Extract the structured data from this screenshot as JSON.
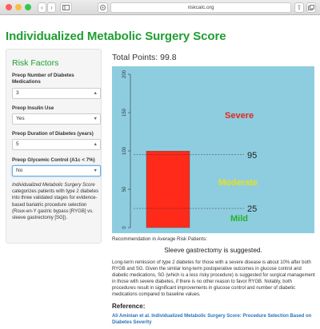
{
  "browser": {
    "url": "riskcalc.org",
    "colors": {
      "close": "#fc605c",
      "minimize": "#fdbc40",
      "zoom": "#34c84a"
    }
  },
  "page": {
    "title": "Individualized Metabolic Surgery Score",
    "accent_color": "#1f9e32"
  },
  "sidebar": {
    "heading": "Risk Factors",
    "fields": [
      {
        "label": "Preop Number of Diabetes Medications",
        "value": "3",
        "control": "numeric-stepper"
      },
      {
        "label": "Preop Insulin Use",
        "value": "Yes",
        "control": "select"
      },
      {
        "label": "Preop Duration of Diabetes (years)",
        "value": "5",
        "control": "numeric-stepper"
      },
      {
        "label": "Preop Glycemic Control (A1c < 7%)",
        "value": "No",
        "control": "select"
      }
    ],
    "description_italic": "Individualized Metabolic Surgery Score",
    "description_rest": " categorizes patients with type 2 diabetes into three validated stages for evidence-based bariatric procedure selection (Roux-en-Y gastric bypass [RYGB] vs. sleeve gastrectomy [SG])."
  },
  "result": {
    "total_label": "Total Points: ",
    "total_points": "99.8"
  },
  "chart_data": {
    "type": "bar",
    "value": 99.8,
    "ylim": [
      0,
      200
    ],
    "y_ticks": [
      "0",
      "50",
      "100",
      "150",
      "200"
    ],
    "thresholds": [
      {
        "value": 25,
        "label": "25"
      },
      {
        "value": 95,
        "label": "95"
      }
    ],
    "zones": [
      {
        "label": "Severe",
        "color": "#e3271c"
      },
      {
        "label": "Moderate",
        "color": "#e6e21a"
      },
      {
        "label": "Mild",
        "color": "#26b326"
      }
    ],
    "background_color": "#8ecde0",
    "bar_color": "#ff2a1a",
    "grid": false
  },
  "recommendation": {
    "label": "Recommendation in Average Risk Patients:",
    "text": "Sleeve gastrectomy is suggested.",
    "paragraph": "Long-term remission of type 2 diabetes for those with a severe disease is about 10% after both RYGB and SG. Given the similar long-term postoperative outcomes in glucose control and diabetic medications, SG (which is a less risky procedure) is suggested for surgical management in those with severe diabetes, if there is no other reason to favor RYGB. Notably, both procedures result in significant improvements in glucose control and number of diabetic medications compared to baseline values."
  },
  "reference": {
    "heading": "Reference:",
    "link_text": "Ali Aminian et al. Individualized Metabolic Surgery Score: Procedure Selection Based on Diabetes Severity"
  }
}
